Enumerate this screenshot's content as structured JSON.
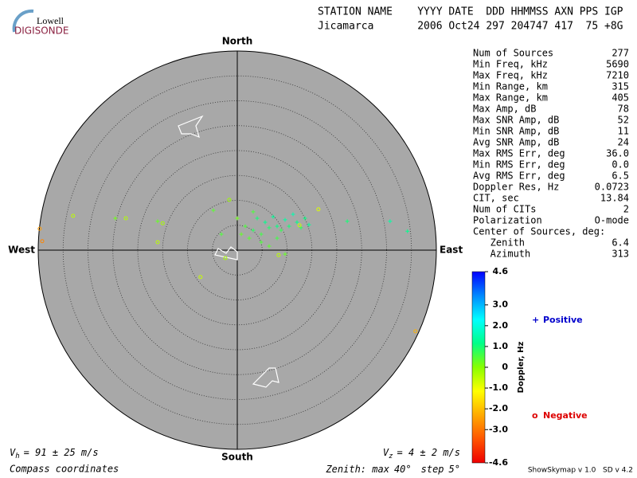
{
  "header": {
    "logo_top": "Lowell",
    "logo_bottom": "DIGISONDE",
    "columns": "STATION NAME    YYYY DATE  DDD HHMMSS AXN PPS IGP",
    "values": "Jicamarca       2006 Oct24 297 204747 417  75 +8G"
  },
  "chart_data": {
    "type": "skymap",
    "directions": {
      "north": "North",
      "south": "South",
      "east": "East",
      "west": "West"
    },
    "zenith_max": 40,
    "zenith_step": 5,
    "sources": {
      "x_deg": [
        -39.7,
        -39.2,
        35.8,
        -33.0,
        -24.5,
        -22.4,
        -16.0,
        -15.0,
        -16.0,
        -7.4,
        -4.8,
        -1.6,
        -3.2,
        -2.4,
        1.6,
        3.2,
        4.0,
        4.8,
        5.6,
        6.4,
        7.2,
        8.0,
        8.8,
        9.6,
        10.4,
        11.2,
        12.0,
        12.8,
        13.6,
        14.4,
        2.4,
        4.8,
        8.0,
        9.6,
        6.4,
        0.8,
        0,
        3.2,
        30.7,
        34.2,
        22.1,
        16.3,
        12.5,
        8.3
      ],
      "y_deg": [
        4.3,
        1.8,
        -16.3,
        6.9,
        6.4,
        6.4,
        5.8,
        5.4,
        1.6,
        -5.4,
        8.0,
        10.1,
        3.2,
        -1.6,
        4.8,
        4.0,
        6.4,
        3.2,
        5.6,
        4.5,
        6.7,
        4.8,
        4.0,
        6.1,
        4.8,
        7.2,
        5.6,
        4.5,
        6.4,
        5.1,
        2.4,
        1.6,
        2.4,
        -0.8,
        0.8,
        3.2,
        6.4,
        7.7,
        5.8,
        3.8,
        5.8,
        8.2,
        5.0,
        -1.0
      ],
      "doppler": [
        -2.5,
        -2.8,
        -2.2,
        -0.5,
        0.2,
        -0.4,
        0.3,
        -0.3,
        -0.5,
        -0.6,
        0.4,
        -0.2,
        0.5,
        -0.3,
        0.5,
        0.8,
        1.0,
        0.6,
        1.2,
        0.9,
        1.3,
        1.1,
        0.7,
        1.4,
        1.0,
        1.5,
        1.2,
        0.8,
        1.1,
        1.3,
        0.4,
        0.5,
        0.6,
        0.3,
        0.4,
        0.3,
        0.2,
        0.5,
        1.4,
        1.2,
        1.0,
        -0.8,
        -0.6,
        -0.5
      ]
    },
    "colorbar": {
      "label": "Doppler, Hz",
      "lim": [
        -4.6,
        4.6
      ],
      "ticks": [
        4.6,
        {
          "value": 3,
          "label": "3.0"
        },
        {
          "value": 2,
          "label": "2.0"
        },
        {
          "value": 1,
          "label": "1.0"
        },
        0,
        {
          "value": -1,
          "label": "-1.0"
        },
        {
          "value": -2,
          "label": "-2.0"
        },
        {
          "value": -3,
          "label": "-3.0"
        },
        -4.6
      ],
      "colorscale": [
        "#ee0000",
        "#ff5500",
        "#ffaa00",
        "#ffff00",
        "#88ff00",
        "#00ff88",
        "#00ffff",
        "#0088ff",
        "#0000ff"
      ]
    },
    "legend": {
      "positive_symbol": "+",
      "positive": "Positive",
      "positive_color": "#0000cc",
      "negative_symbol": "o",
      "negative": "Negative",
      "negative_color": "#dd0000"
    }
  },
  "stats": [
    [
      "Num of Sources",
      "277"
    ],
    [
      "Min Freq, kHz",
      "5690"
    ],
    [
      "Max Freq, kHz",
      "7210"
    ],
    [
      "Min Range, km",
      "315"
    ],
    [
      "Max Range, km",
      "405"
    ],
    [
      "Max Amp, dB",
      "78"
    ],
    [
      "Max SNR Amp, dB",
      "52"
    ],
    [
      "Min SNR Amp, dB",
      "11"
    ],
    [
      "Avg SNR Amp, dB",
      "24"
    ],
    [
      "Max RMS Err, deg",
      "36.0"
    ],
    [
      "Min RMS Err, deg",
      "0.0"
    ],
    [
      "Avg RMS Err, deg",
      "6.5"
    ],
    [
      "Doppler Res, Hz",
      "0.0723"
    ],
    [
      "CIT, sec",
      "13.84"
    ],
    [
      "Num of CITs",
      "2"
    ],
    [
      "Polarization",
      "O-mode"
    ],
    [
      "Center of Sources, deg:",
      ""
    ],
    [
      "   Zenith",
      "6.4"
    ],
    [
      "   Azimuth",
      "313"
    ]
  ],
  "footer": {
    "vh_symbol": "V",
    "vh_sub": "h",
    "vh_text": "= 91 ± 25 m/s",
    "vz_symbol": "V",
    "vz_sub": "z",
    "vz_text": "= 4 ± 2 m/s",
    "compass": "Compass coordinates",
    "zenith_prefix": "Zenith: max",
    "zenith_unit": "°",
    "step_prefix": "step",
    "credit": "ShowSkymap v 1.0   SD v 4.2"
  }
}
